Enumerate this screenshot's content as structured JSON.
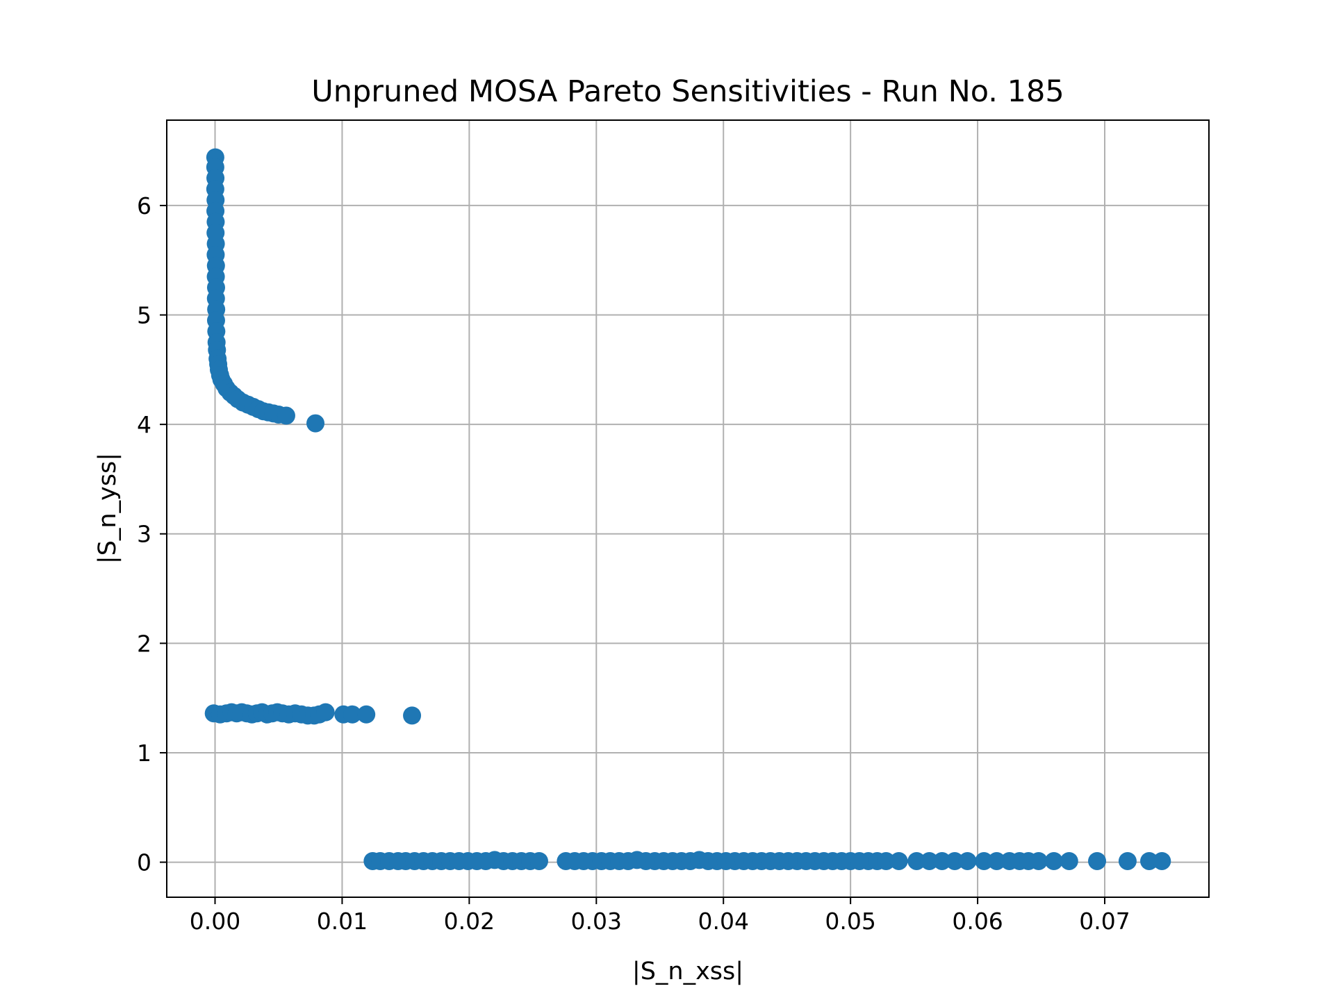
{
  "chart_data": {
    "type": "scatter",
    "title": "Unpruned MOSA Pareto Sensitivities - Run No. 185",
    "xlabel": "|S_n_xss|",
    "ylabel": "|S_n_yss|",
    "xlim": [
      -0.0038,
      0.0782
    ],
    "ylim": [
      -0.32,
      6.78
    ],
    "grid": true,
    "x_ticks": [
      0.0,
      0.01,
      0.02,
      0.03,
      0.04,
      0.05,
      0.06,
      0.07
    ],
    "x_tick_labels": [
      "0.00",
      "0.01",
      "0.02",
      "0.03",
      "0.04",
      "0.05",
      "0.06",
      "0.07"
    ],
    "y_ticks": [
      0,
      1,
      2,
      3,
      4,
      5,
      6
    ],
    "y_tick_labels": [
      "0",
      "1",
      "2",
      "3",
      "4",
      "5",
      "6"
    ],
    "color": "#1f77b4",
    "series": [
      {
        "points": [
          [
            2e-05,
            6.44
          ],
          [
            2e-05,
            6.35
          ],
          [
            3e-05,
            6.25
          ],
          [
            2e-05,
            6.15
          ],
          [
            4e-05,
            6.05
          ],
          [
            3e-05,
            5.95
          ],
          [
            5e-05,
            5.85
          ],
          [
            4e-05,
            5.75
          ],
          [
            6e-05,
            5.65
          ],
          [
            5e-05,
            5.55
          ],
          [
            7e-05,
            5.45
          ],
          [
            6e-05,
            5.35
          ],
          [
            8e-05,
            5.25
          ],
          [
            7e-05,
            5.15
          ],
          [
            9e-05,
            5.05
          ],
          [
            8e-05,
            4.95
          ],
          [
            0.0001,
            4.85
          ],
          [
            0.00012,
            4.75
          ],
          [
            0.00015,
            4.68
          ],
          [
            0.0002,
            4.6
          ],
          [
            0.00025,
            4.55
          ],
          [
            0.0003,
            4.5
          ],
          [
            0.0004,
            4.45
          ],
          [
            0.0005,
            4.41
          ],
          [
            0.0007,
            4.37
          ],
          [
            0.0009,
            4.33
          ],
          [
            0.0012,
            4.29
          ],
          [
            0.0015,
            4.26
          ],
          [
            0.0018,
            4.23
          ],
          [
            0.0022,
            4.2
          ],
          [
            0.0026,
            4.18
          ],
          [
            0.003,
            4.16
          ],
          [
            0.0034,
            4.14
          ],
          [
            0.0038,
            4.12
          ],
          [
            0.0042,
            4.11
          ],
          [
            0.0046,
            4.1
          ],
          [
            0.005,
            4.09
          ],
          [
            0.0056,
            4.08
          ],
          [
            0.0079,
            4.01
          ],
          [
            -0.0001,
            1.36
          ],
          [
            0.0004,
            1.35
          ],
          [
            0.0009,
            1.36
          ],
          [
            0.0013,
            1.37
          ],
          [
            0.0017,
            1.36
          ],
          [
            0.0021,
            1.37
          ],
          [
            0.0025,
            1.36
          ],
          [
            0.0029,
            1.35
          ],
          [
            0.0033,
            1.36
          ],
          [
            0.0037,
            1.37
          ],
          [
            0.0041,
            1.35
          ],
          [
            0.0045,
            1.36
          ],
          [
            0.0049,
            1.37
          ],
          [
            0.0053,
            1.36
          ],
          [
            0.0058,
            1.35
          ],
          [
            0.0063,
            1.36
          ],
          [
            0.0068,
            1.35
          ],
          [
            0.0073,
            1.34
          ],
          [
            0.0078,
            1.34
          ],
          [
            0.0082,
            1.35
          ],
          [
            0.0087,
            1.37
          ],
          [
            0.0101,
            1.35
          ],
          [
            0.0108,
            1.35
          ],
          [
            0.0119,
            1.35
          ],
          [
            0.0155,
            1.34
          ],
          [
            0.0124,
            0.01
          ],
          [
            0.013,
            0.01
          ],
          [
            0.0137,
            0.01
          ],
          [
            0.0144,
            0.01
          ],
          [
            0.015,
            0.01
          ],
          [
            0.0157,
            0.01
          ],
          [
            0.0164,
            0.01
          ],
          [
            0.0171,
            0.01
          ],
          [
            0.0178,
            0.01
          ],
          [
            0.0185,
            0.01
          ],
          [
            0.0192,
            0.01
          ],
          [
            0.0199,
            0.01
          ],
          [
            0.0206,
            0.01
          ],
          [
            0.0213,
            0.01
          ],
          [
            0.022,
            0.02
          ],
          [
            0.0227,
            0.01
          ],
          [
            0.0234,
            0.01
          ],
          [
            0.0241,
            0.01
          ],
          [
            0.0248,
            0.01
          ],
          [
            0.0255,
            0.01
          ],
          [
            0.0276,
            0.01
          ],
          [
            0.0283,
            0.01
          ],
          [
            0.029,
            0.01
          ],
          [
            0.0297,
            0.01
          ],
          [
            0.0304,
            0.01
          ],
          [
            0.0311,
            0.01
          ],
          [
            0.0318,
            0.01
          ],
          [
            0.0325,
            0.01
          ],
          [
            0.0332,
            0.02
          ],
          [
            0.0339,
            0.01
          ],
          [
            0.0346,
            0.01
          ],
          [
            0.0353,
            0.01
          ],
          [
            0.036,
            0.01
          ],
          [
            0.0367,
            0.01
          ],
          [
            0.0374,
            0.01
          ],
          [
            0.0381,
            0.02
          ],
          [
            0.0388,
            0.01
          ],
          [
            0.0395,
            0.01
          ],
          [
            0.0402,
            0.01
          ],
          [
            0.0409,
            0.01
          ],
          [
            0.0416,
            0.01
          ],
          [
            0.0423,
            0.01
          ],
          [
            0.043,
            0.01
          ],
          [
            0.0437,
            0.01
          ],
          [
            0.0444,
            0.01
          ],
          [
            0.0451,
            0.01
          ],
          [
            0.0458,
            0.01
          ],
          [
            0.0465,
            0.01
          ],
          [
            0.0472,
            0.01
          ],
          [
            0.0479,
            0.01
          ],
          [
            0.0486,
            0.01
          ],
          [
            0.0493,
            0.01
          ],
          [
            0.05,
            0.01
          ],
          [
            0.0507,
            0.01
          ],
          [
            0.0514,
            0.01
          ],
          [
            0.0521,
            0.01
          ],
          [
            0.0528,
            0.01
          ],
          [
            0.0538,
            0.01
          ],
          [
            0.0552,
            0.01
          ],
          [
            0.0562,
            0.01
          ],
          [
            0.0572,
            0.01
          ],
          [
            0.0582,
            0.01
          ],
          [
            0.0592,
            0.01
          ],
          [
            0.0605,
            0.01
          ],
          [
            0.0615,
            0.01
          ],
          [
            0.0625,
            0.01
          ],
          [
            0.0633,
            0.01
          ],
          [
            0.064,
            0.01
          ],
          [
            0.0648,
            0.01
          ],
          [
            0.066,
            0.01
          ],
          [
            0.0672,
            0.01
          ],
          [
            0.0694,
            0.01
          ],
          [
            0.0718,
            0.01
          ],
          [
            0.0735,
            0.01
          ],
          [
            0.0745,
            0.01
          ]
        ]
      }
    ]
  }
}
